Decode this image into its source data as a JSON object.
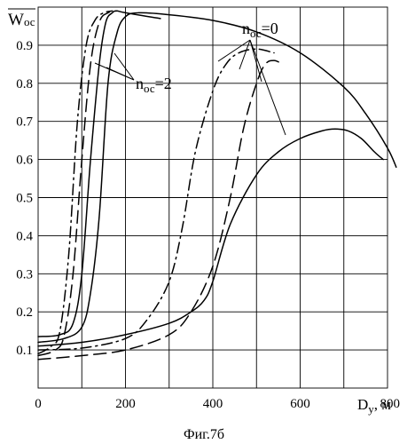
{
  "figure_caption": "Фиг.7б",
  "chart_data": {
    "type": "line",
    "title": "",
    "ylabel": "W",
    "ylabel_sub": "ос",
    "xlabel": "D",
    "xlabel_sub": "у",
    "xlabel_unit": ", м",
    "xlim": [
      0,
      800
    ],
    "ylim": [
      0,
      1.0
    ],
    "x_ticks": [
      0,
      200,
      400,
      600,
      800
    ],
    "x_tick_labels": [
      "0",
      "200",
      "400",
      "600",
      "800"
    ],
    "y_ticks": [
      0.1,
      0.2,
      0.3,
      0.4,
      0.5,
      0.6,
      0.7,
      0.8,
      0.9
    ],
    "y_tick_labels": [
      "0.1",
      "0.2",
      "0.3",
      "0.4",
      "0.5",
      "0.6",
      "0.7",
      "0.8",
      "0.9"
    ],
    "grid": true,
    "annotations": [
      {
        "text_main": "n",
        "text_sub": "ос",
        "text_value": "=0"
      },
      {
        "text_main": "n",
        "text_sub": "ос",
        "text_value": "=2"
      }
    ],
    "series": [
      {
        "style": "solid",
        "x": [
          0,
          100,
          200,
          300,
          350,
          380,
          400,
          440,
          500,
          550,
          600,
          650,
          680,
          710,
          740,
          770,
          790
        ],
        "y": [
          0.11,
          0.12,
          0.14,
          0.17,
          0.2,
          0.23,
          0.28,
          0.43,
          0.56,
          0.62,
          0.655,
          0.675,
          0.68,
          0.675,
          0.655,
          0.62,
          0.6
        ]
      },
      {
        "style": "dashed",
        "x": [
          0,
          100,
          200,
          300,
          350,
          400,
          440,
          470,
          500,
          520,
          540,
          560
        ],
        "y": [
          0.075,
          0.085,
          0.1,
          0.14,
          0.2,
          0.32,
          0.5,
          0.68,
          0.8,
          0.85,
          0.86,
          0.85
        ]
      },
      {
        "style": "dash-dot",
        "x": [
          0,
          100,
          200,
          250,
          300,
          330,
          360,
          400,
          430,
          460,
          500,
          540
        ],
        "y": [
          0.1,
          0.105,
          0.13,
          0.18,
          0.28,
          0.42,
          0.62,
          0.78,
          0.85,
          0.88,
          0.89,
          0.88
        ]
      },
      {
        "style": "solid",
        "x": [
          0,
          60,
          100,
          120,
          140,
          160,
          180,
          200,
          230,
          300,
          400,
          500,
          600,
          700,
          750,
          800,
          820
        ],
        "y": [
          0.12,
          0.13,
          0.16,
          0.25,
          0.45,
          0.8,
          0.93,
          0.975,
          0.985,
          0.98,
          0.965,
          0.935,
          0.88,
          0.79,
          0.72,
          0.63,
          0.58
        ]
      },
      {
        "style": "solid",
        "x": [
          0,
          50,
          80,
          100,
          120,
          140,
          155,
          170,
          180,
          200,
          280
        ],
        "y": [
          0.135,
          0.14,
          0.17,
          0.3,
          0.6,
          0.85,
          0.96,
          0.985,
          0.99,
          0.985,
          0.97
        ]
      },
      {
        "style": "dashed",
        "x": [
          0,
          40,
          60,
          80,
          100,
          120,
          140,
          160,
          180
        ],
        "y": [
          0.085,
          0.1,
          0.14,
          0.3,
          0.6,
          0.85,
          0.96,
          0.985,
          0.99
        ]
      },
      {
        "style": "dash-dot",
        "x": [
          0,
          30,
          50,
          70,
          90,
          110,
          130,
          150,
          170
        ],
        "y": [
          0.09,
          0.11,
          0.15,
          0.35,
          0.7,
          0.9,
          0.965,
          0.985,
          0.99
        ]
      }
    ]
  }
}
